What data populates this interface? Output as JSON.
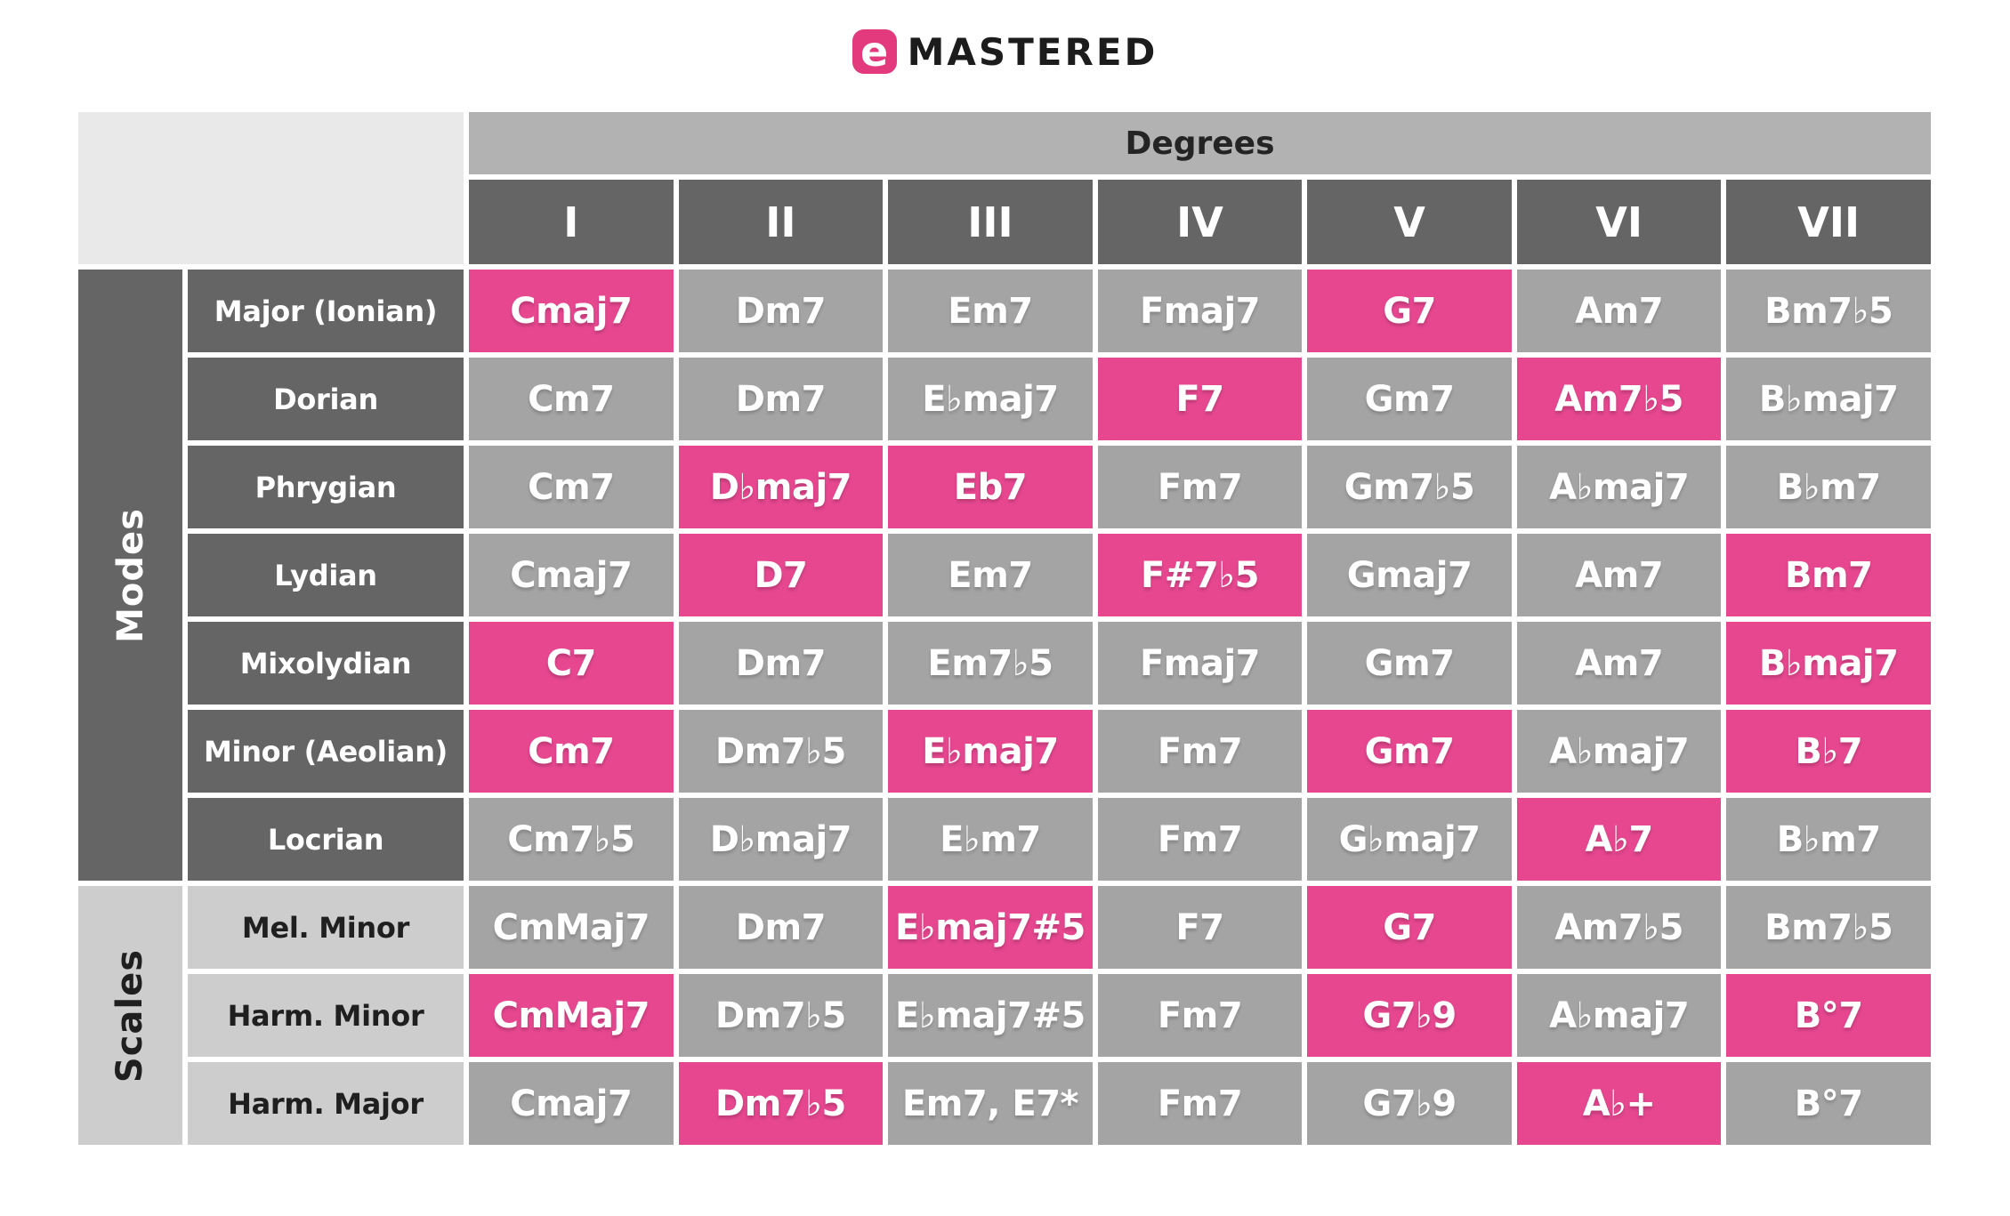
{
  "logo": {
    "icon_letter": "e",
    "brand": "MASTERED"
  },
  "colors": {
    "pink": "#e6478f",
    "logo_pink": "#e23a7d",
    "cell_gray": "#a4a4a4",
    "dark_gray": "#656565",
    "band_gray": "#b2b2b2",
    "corner_gray": "#e9e9e9",
    "light_gray": "#cdcdcd"
  },
  "chart_data": {
    "type": "table",
    "header": "Degrees",
    "columns": [
      "I",
      "II",
      "III",
      "IV",
      "V",
      "VI",
      "VII"
    ],
    "legend_note": "",
    "groups": [
      {
        "label": "Modes",
        "rows": [
          {
            "label": "Major (Ionian)",
            "cells": [
              {
                "text": "Cmaj7",
                "highlight": true
              },
              {
                "text": "Dm7",
                "highlight": false
              },
              {
                "text": "Em7",
                "highlight": false
              },
              {
                "text": "Fmaj7",
                "highlight": false
              },
              {
                "text": "G7",
                "highlight": true
              },
              {
                "text": "Am7",
                "highlight": false
              },
              {
                "text": "Bm7♭5",
                "highlight": false
              }
            ]
          },
          {
            "label": "Dorian",
            "cells": [
              {
                "text": "Cm7",
                "highlight": false
              },
              {
                "text": "Dm7",
                "highlight": false
              },
              {
                "text": "E♭maj7",
                "highlight": false
              },
              {
                "text": "F7",
                "highlight": true
              },
              {
                "text": "Gm7",
                "highlight": false
              },
              {
                "text": "Am7♭5",
                "highlight": true
              },
              {
                "text": "B♭maj7",
                "highlight": false
              }
            ]
          },
          {
            "label": "Phrygian",
            "cells": [
              {
                "text": "Cm7",
                "highlight": false
              },
              {
                "text": "D♭maj7",
                "highlight": true
              },
              {
                "text": "Eb7",
                "highlight": true
              },
              {
                "text": "Fm7",
                "highlight": false
              },
              {
                "text": "Gm7♭5",
                "highlight": false
              },
              {
                "text": "A♭maj7",
                "highlight": false
              },
              {
                "text": "B♭m7",
                "highlight": false
              }
            ]
          },
          {
            "label": "Lydian",
            "cells": [
              {
                "text": "Cmaj7",
                "highlight": false
              },
              {
                "text": "D7",
                "highlight": true
              },
              {
                "text": "Em7",
                "highlight": false
              },
              {
                "text": "F#7♭5",
                "highlight": true
              },
              {
                "text": "Gmaj7",
                "highlight": false
              },
              {
                "text": "Am7",
                "highlight": false
              },
              {
                "text": "Bm7",
                "highlight": true
              }
            ]
          },
          {
            "label": "Mixolydian",
            "cells": [
              {
                "text": "C7",
                "highlight": true
              },
              {
                "text": "Dm7",
                "highlight": false
              },
              {
                "text": "Em7♭5",
                "highlight": false
              },
              {
                "text": "Fmaj7",
                "highlight": false
              },
              {
                "text": "Gm7",
                "highlight": false
              },
              {
                "text": "Am7",
                "highlight": false
              },
              {
                "text": "B♭maj7",
                "highlight": true
              }
            ]
          },
          {
            "label": "Minor (Aeolian)",
            "cells": [
              {
                "text": "Cm7",
                "highlight": true
              },
              {
                "text": "Dm7♭5",
                "highlight": false
              },
              {
                "text": "E♭maj7",
                "highlight": true
              },
              {
                "text": "Fm7",
                "highlight": false
              },
              {
                "text": "Gm7",
                "highlight": true
              },
              {
                "text": "A♭maj7",
                "highlight": false
              },
              {
                "text": "B♭7",
                "highlight": true
              }
            ]
          },
          {
            "label": "Locrian",
            "cells": [
              {
                "text": "Cm7♭5",
                "highlight": false
              },
              {
                "text": "D♭maj7",
                "highlight": false
              },
              {
                "text": "E♭m7",
                "highlight": false
              },
              {
                "text": "Fm7",
                "highlight": false
              },
              {
                "text": "G♭maj7",
                "highlight": false
              },
              {
                "text": "A♭7",
                "highlight": true
              },
              {
                "text": "B♭m7",
                "highlight": false
              }
            ]
          }
        ]
      },
      {
        "label": "Scales",
        "rows": [
          {
            "label": "Mel. Minor",
            "cells": [
              {
                "text": "CmMaj7",
                "highlight": false
              },
              {
                "text": "Dm7",
                "highlight": false
              },
              {
                "text": "E♭maj7#5",
                "highlight": true
              },
              {
                "text": "F7",
                "highlight": false
              },
              {
                "text": "G7",
                "highlight": true
              },
              {
                "text": "Am7♭5",
                "highlight": false
              },
              {
                "text": "Bm7♭5",
                "highlight": false
              }
            ]
          },
          {
            "label": "Harm. Minor",
            "cells": [
              {
                "text": "CmMaj7",
                "highlight": true
              },
              {
                "text": "Dm7♭5",
                "highlight": false
              },
              {
                "text": "E♭maj7#5",
                "highlight": false
              },
              {
                "text": "Fm7",
                "highlight": false
              },
              {
                "text": "G7♭9",
                "highlight": true
              },
              {
                "text": "A♭maj7",
                "highlight": false
              },
              {
                "text": "B°7",
                "highlight": true
              }
            ]
          },
          {
            "label": "Harm. Major",
            "cells": [
              {
                "text": "Cmaj7",
                "highlight": false
              },
              {
                "text": "Dm7♭5",
                "highlight": true
              },
              {
                "text": "Em7, E7*",
                "highlight": false
              },
              {
                "text": "Fm7",
                "highlight": false
              },
              {
                "text": "G7♭9",
                "highlight": false
              },
              {
                "text": "A♭+",
                "highlight": true
              },
              {
                "text": "B°7",
                "highlight": false
              }
            ]
          }
        ]
      }
    ]
  }
}
